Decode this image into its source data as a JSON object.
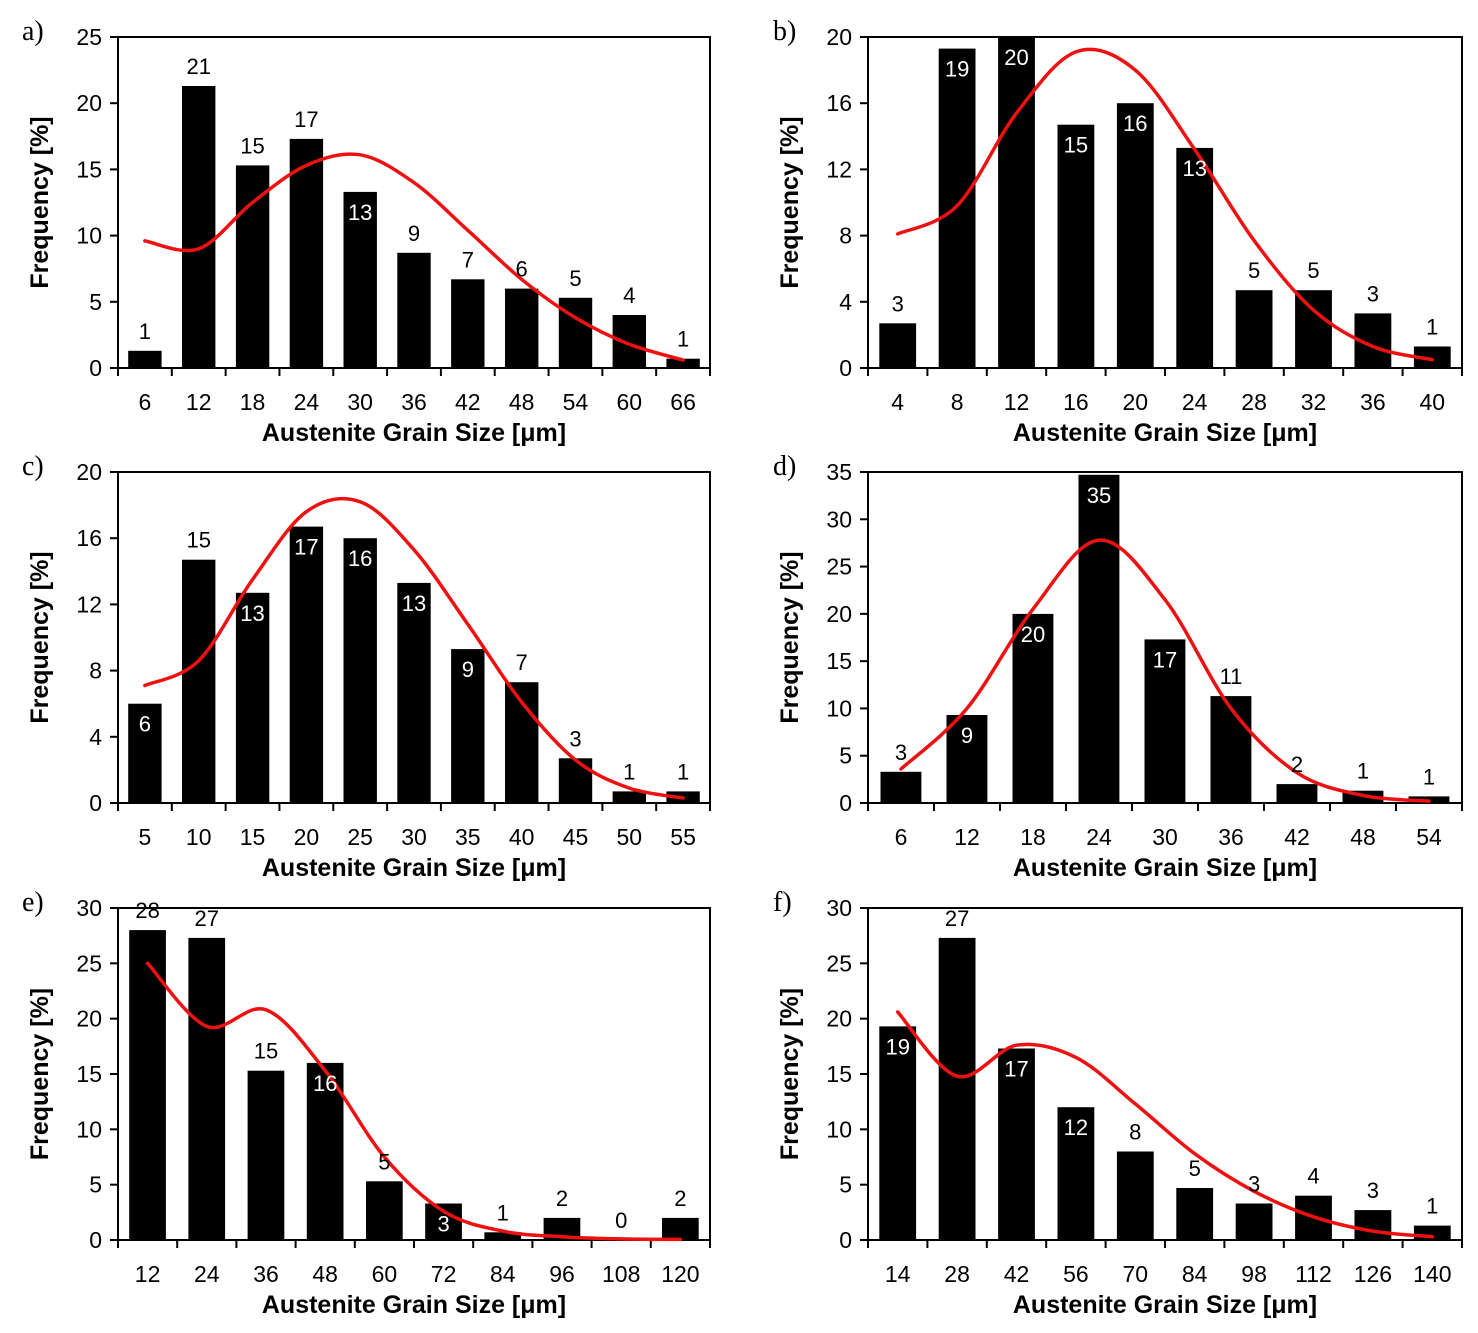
{
  "figure": {
    "accent_colors": {
      "bar": "#000000",
      "curve": "#ee1111",
      "label_inside": "#ffffff",
      "label_outside": "#000000"
    }
  },
  "chart_data": [
    {
      "panel": "a)",
      "type": "bar",
      "categories": [
        "6",
        "12",
        "18",
        "24",
        "30",
        "36",
        "42",
        "48",
        "54",
        "60",
        "66"
      ],
      "values": [
        1.3,
        21.3,
        15.3,
        17.3,
        13.3,
        8.7,
        6.7,
        6.0,
        5.3,
        4.0,
        0.7
      ],
      "labels": [
        "1",
        "21",
        "15",
        "17",
        "13",
        "9",
        "7",
        "6",
        "5",
        "4",
        "1"
      ],
      "label_inside": [
        false,
        false,
        false,
        false,
        true,
        false,
        false,
        false,
        false,
        false,
        false
      ],
      "ylim": [
        0,
        25
      ],
      "yticks": [
        0,
        5,
        10,
        15,
        20,
        25
      ],
      "xlabel": "Austenite Grain Size [μm]",
      "ylabel": "Frequency [%]",
      "fit_curve": {
        "x_index": [
          0,
          1,
          2,
          3,
          4,
          5,
          6,
          7,
          8,
          9,
          10
        ],
        "y": [
          9.6,
          9.0,
          12.5,
          15.3,
          16.1,
          14.0,
          10.4,
          6.7,
          3.8,
          1.8,
          0.6
        ]
      }
    },
    {
      "panel": "b)",
      "type": "bar",
      "categories": [
        "4",
        "8",
        "12",
        "16",
        "20",
        "24",
        "28",
        "32",
        "36",
        "40"
      ],
      "values": [
        2.7,
        19.3,
        20,
        14.7,
        16,
        13.3,
        4.7,
        4.7,
        3.3,
        1.3
      ],
      "labels": [
        "3",
        "19",
        "20",
        "15",
        "16",
        "13",
        "5",
        "5",
        "3",
        "1"
      ],
      "label_inside": [
        false,
        true,
        true,
        true,
        true,
        true,
        false,
        false,
        false,
        false
      ],
      "ylim": [
        0,
        20
      ],
      "yticks": [
        0,
        4,
        8,
        12,
        16,
        20
      ],
      "xlabel": "Austenite Grain Size [μm]",
      "ylabel": "Frequency [%]",
      "fit_curve": {
        "x_index": [
          0,
          1,
          2,
          3,
          4,
          5,
          6,
          7,
          8,
          9
        ],
        "y": [
          8.1,
          9.8,
          15.4,
          19.1,
          18.0,
          13.2,
          7.7,
          3.5,
          1.3,
          0.5
        ]
      }
    },
    {
      "panel": "c)",
      "type": "bar",
      "categories": [
        "5",
        "10",
        "15",
        "20",
        "25",
        "30",
        "35",
        "40",
        "45",
        "50",
        "55"
      ],
      "values": [
        6.0,
        14.7,
        12.7,
        16.7,
        16.0,
        13.3,
        9.3,
        7.3,
        2.7,
        0.7,
        0.7
      ],
      "labels": [
        "6",
        "15",
        "13",
        "17",
        "16",
        "13",
        "9",
        "7",
        "3",
        "1",
        "1"
      ],
      "label_inside": [
        true,
        false,
        true,
        true,
        true,
        true,
        true,
        false,
        false,
        false,
        false
      ],
      "ylim": [
        0,
        20
      ],
      "yticks": [
        0,
        4,
        8,
        12,
        16,
        20
      ],
      "xlabel": "Austenite Grain Size [μm]",
      "ylabel": "Frequency [%]",
      "fit_curve": {
        "x_index": [
          0,
          1,
          2,
          3,
          4,
          5,
          6,
          7,
          8,
          9,
          10
        ],
        "y": [
          7.1,
          8.6,
          13.5,
          17.6,
          18.2,
          15.3,
          10.8,
          6.1,
          2.6,
          0.9,
          0.3
        ]
      }
    },
    {
      "panel": "d)",
      "type": "bar",
      "categories": [
        "6",
        "12",
        "18",
        "24",
        "30",
        "36",
        "42",
        "48",
        "54"
      ],
      "values": [
        3.3,
        9.3,
        20.0,
        34.7,
        17.3,
        11.3,
        2.0,
        1.3,
        0.7
      ],
      "labels": [
        "3",
        "9",
        "20",
        "35",
        "17",
        "11",
        "2",
        "1",
        "1"
      ],
      "label_inside": [
        false,
        true,
        true,
        true,
        true,
        false,
        false,
        false,
        false
      ],
      "ylim": [
        0,
        35
      ],
      "yticks": [
        0,
        5,
        10,
        15,
        20,
        25,
        30,
        35
      ],
      "xlabel": "Austenite Grain Size [μm]",
      "ylabel": "Frequency [%]",
      "fit_curve": {
        "x_index": [
          0,
          1,
          2,
          3,
          4,
          5,
          6,
          7,
          8
        ],
        "y": [
          3.6,
          10.0,
          20.5,
          27.8,
          21.5,
          10.0,
          3.2,
          0.8,
          0.2
        ]
      }
    },
    {
      "panel": "e)",
      "type": "bar",
      "categories": [
        "12",
        "24",
        "36",
        "48",
        "60",
        "72",
        "84",
        "96",
        "108",
        "120"
      ],
      "values": [
        28,
        27.3,
        15.3,
        16.0,
        5.3,
        3.3,
        0.7,
        2.0,
        0,
        2.0
      ],
      "labels": [
        "28",
        "27",
        "15",
        "16",
        "5",
        "3",
        "1",
        "2",
        "0",
        "2"
      ],
      "label_inside": [
        false,
        false,
        false,
        true,
        false,
        true,
        false,
        false,
        false,
        false
      ],
      "ylim": [
        0,
        30
      ],
      "yticks": [
        0,
        5,
        10,
        15,
        20,
        25,
        30
      ],
      "xlabel": "Austenite Grain Size [μm]",
      "ylabel": "Frequency [%]",
      "fit_curve": {
        "x_index": [
          0,
          1,
          2,
          3,
          4,
          5,
          6,
          7,
          8,
          9
        ],
        "y": [
          25.0,
          19.3,
          20.8,
          15.3,
          7.5,
          2.6,
          0.8,
          0.3,
          0.1,
          0.05
        ]
      }
    },
    {
      "panel": "f)",
      "type": "bar",
      "categories": [
        "14",
        "28",
        "42",
        "56",
        "70",
        "84",
        "98",
        "112",
        "126",
        "140"
      ],
      "values": [
        19.3,
        27.3,
        17.3,
        12.0,
        8.0,
        4.7,
        3.3,
        4.0,
        2.7,
        1.3
      ],
      "labels": [
        "19",
        "27",
        "17",
        "12",
        "8",
        "5",
        "3",
        "4",
        "3",
        "1"
      ],
      "label_inside": [
        true,
        false,
        true,
        true,
        false,
        false,
        false,
        false,
        false,
        false
      ],
      "ylim": [
        0,
        30
      ],
      "yticks": [
        0,
        5,
        10,
        15,
        20,
        25,
        30
      ],
      "xlabel": "Austenite Grain Size [μm]",
      "ylabel": "Frequency [%]",
      "fit_curve": {
        "x_index": [
          0,
          1,
          2,
          3,
          4,
          5,
          6,
          7,
          8,
          9
        ],
        "y": [
          20.6,
          14.8,
          17.6,
          16.5,
          12.3,
          7.8,
          4.4,
          2.1,
          0.8,
          0.3
        ]
      }
    }
  ]
}
